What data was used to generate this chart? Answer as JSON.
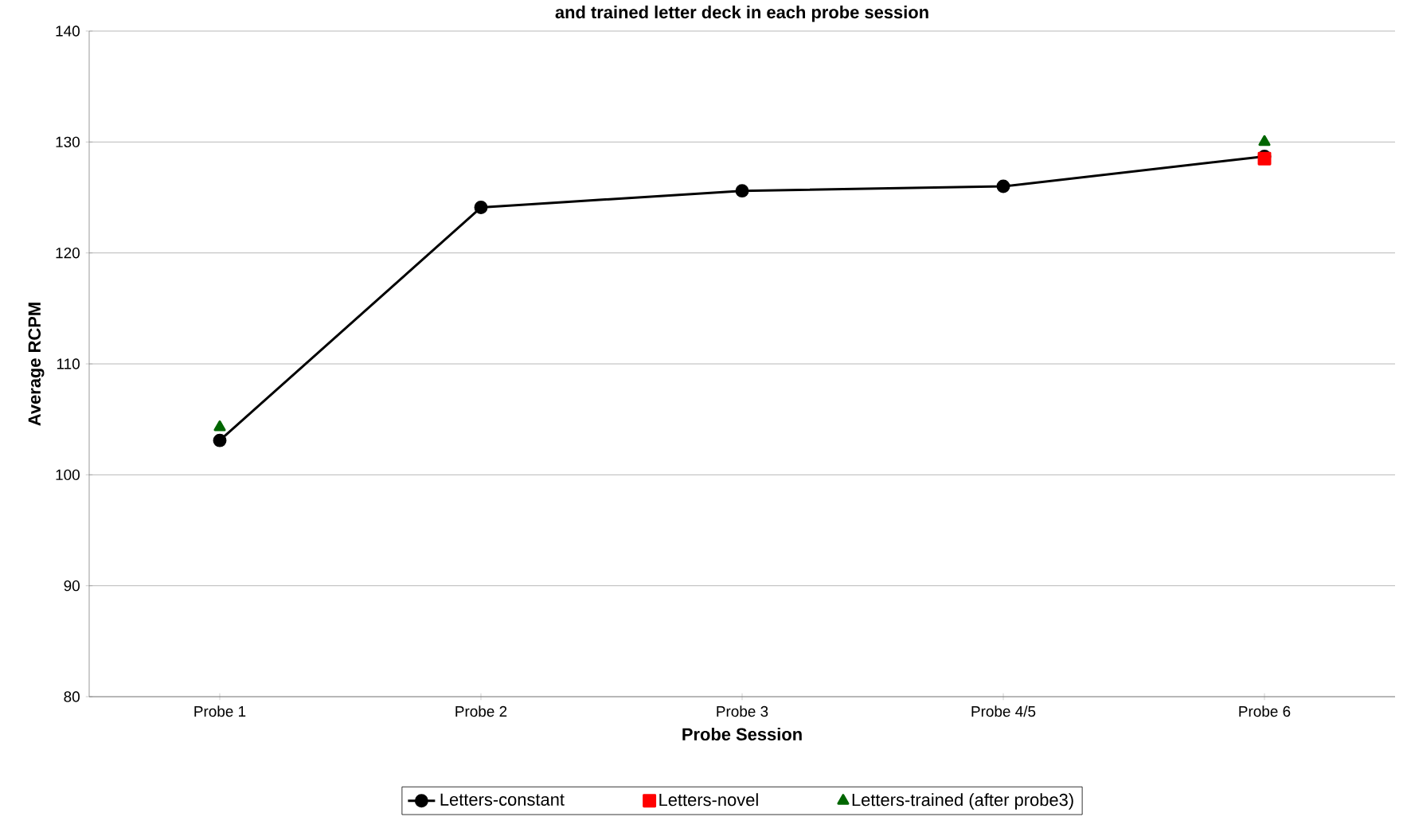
{
  "chart_data": {
    "type": "line",
    "title": "and trained letter deck in each probe session",
    "xlabel": "Probe Session",
    "ylabel": "Average RCPM",
    "categories": [
      "Probe 1",
      "Probe 2",
      "Probe 3",
      "Probe 4/5",
      "Probe 6"
    ],
    "series": [
      {
        "name": "Letters-constant",
        "color": "#000000",
        "marker": "circle",
        "values": [
          103.1,
          124.1,
          125.6,
          126.0,
          128.7
        ]
      },
      {
        "name": "Letters-novel",
        "type": "scatter",
        "color": "#ff0000",
        "marker": "square",
        "values": [
          null,
          null,
          null,
          null,
          128.5
        ]
      },
      {
        "name": "Letters-trained (after probe3)",
        "type": "scatter",
        "color": "#006600",
        "marker": "triangle",
        "values": [
          104.3,
          null,
          null,
          null,
          130.0
        ]
      }
    ],
    "ylim": [
      80,
      140
    ],
    "yticks": [
      80,
      90,
      100,
      110,
      120,
      130,
      140
    ],
    "grid": "y",
    "legend": "bottom",
    "line_style": "solid"
  }
}
